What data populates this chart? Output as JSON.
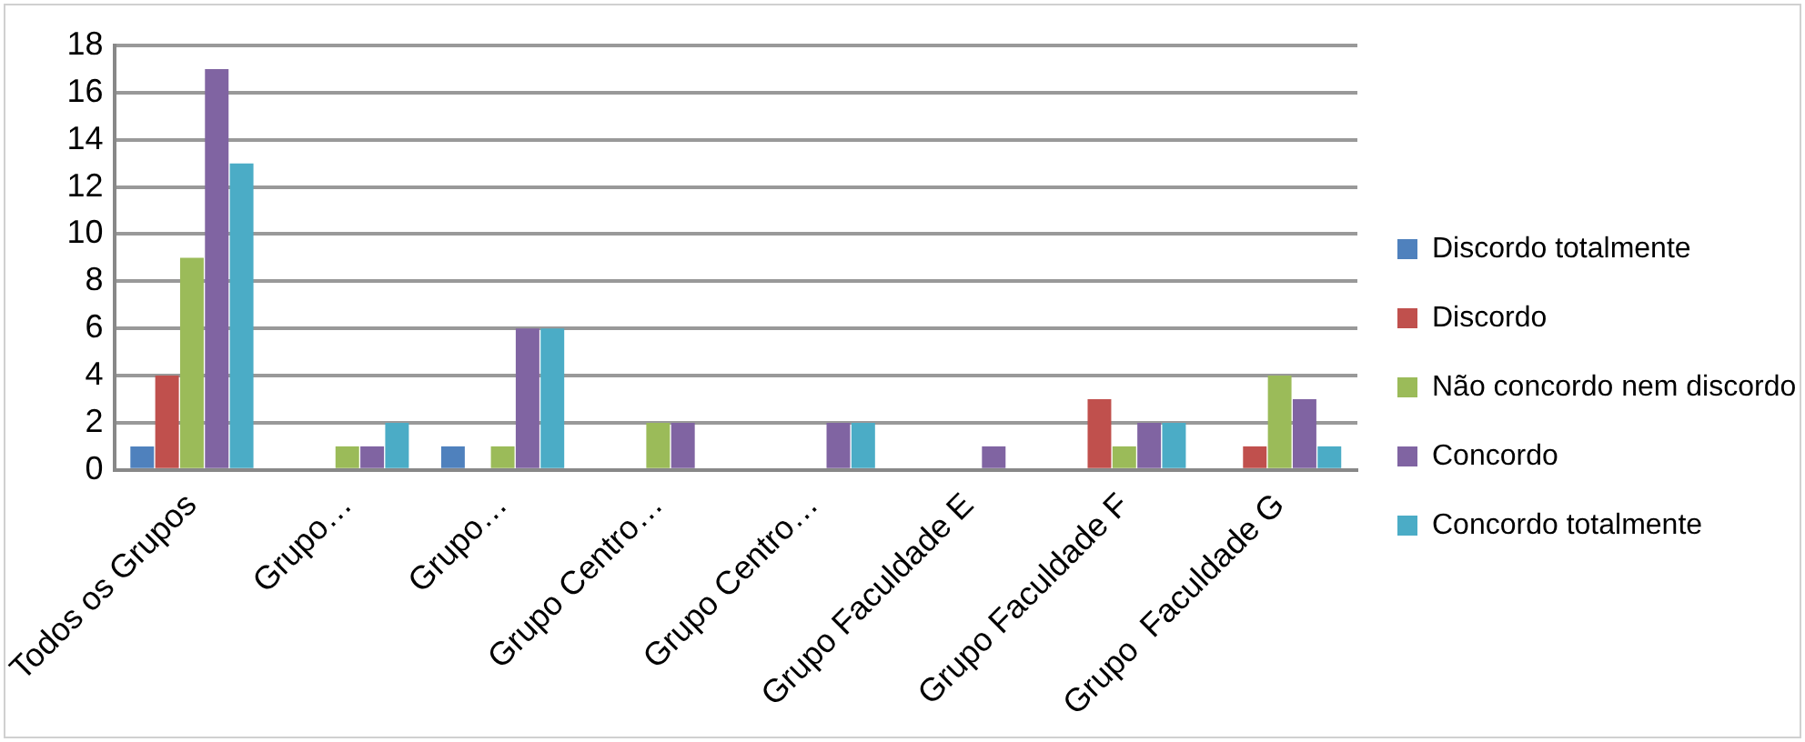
{
  "chart_data": {
    "type": "bar",
    "categories": [
      "Todos os Grupos",
      "Grupo…",
      "Grupo…",
      "Grupo Centro…",
      "Grupo Centro…",
      "Grupo Faculdade E",
      "Grupo Faculdade F",
      "Grupo  Faculdade G"
    ],
    "series": [
      {
        "name": "Discordo totalmente",
        "color": "#4f81bd",
        "values": [
          1,
          0,
          1,
          0,
          0,
          0,
          0,
          0
        ]
      },
      {
        "name": "Discordo",
        "color": "#c0504d",
        "values": [
          4,
          0,
          0,
          0,
          0,
          0,
          3,
          1
        ]
      },
      {
        "name": "Não concordo nem discordo",
        "color": "#9bbb59",
        "values": [
          9,
          1,
          1,
          2,
          0,
          0,
          1,
          4
        ]
      },
      {
        "name": "Concordo",
        "color": "#8064a2",
        "values": [
          17,
          1,
          6,
          2,
          2,
          1,
          2,
          3
        ]
      },
      {
        "name": "Concordo totalmente",
        "color": "#4bacc6",
        "values": [
          13,
          2,
          6,
          0,
          2,
          0,
          2,
          1
        ]
      }
    ],
    "ylim": [
      0,
      18
    ],
    "yticks": [
      0,
      2,
      4,
      6,
      8,
      10,
      12,
      14,
      16,
      18
    ],
    "grid": "y",
    "legend": "right"
  }
}
